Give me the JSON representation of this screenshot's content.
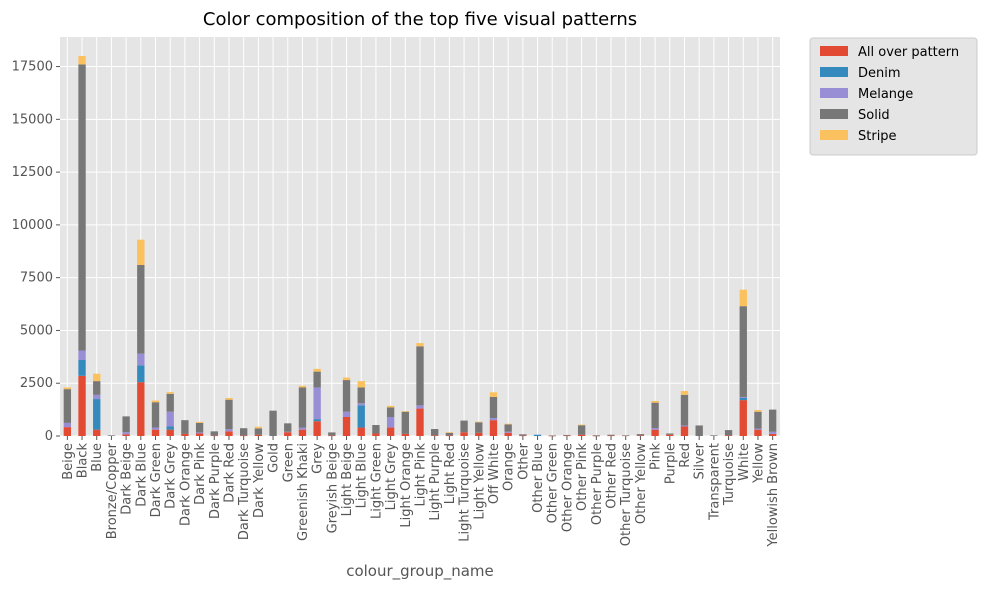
{
  "chart_data": {
    "type": "bar",
    "stacked": true,
    "title": "Color composition of the top five visual patterns",
    "xlabel": "colour_group_name",
    "ylabel": "",
    "ylim": [
      0,
      18900
    ],
    "yticks": [
      0,
      2500,
      5000,
      7500,
      10000,
      12500,
      15000,
      17500
    ],
    "grid": true,
    "legend_position": "outside-top-right",
    "categories": [
      "Beige",
      "Black",
      "Blue",
      "Bronze/Copper",
      "Dark Beige",
      "Dark Blue",
      "Dark Green",
      "Dark Grey",
      "Dark Orange",
      "Dark Pink",
      "Dark Purple",
      "Dark Red",
      "Dark Turquoise",
      "Dark Yellow",
      "Gold",
      "Green",
      "Greenish Khaki",
      "Grey",
      "Greyish Beige",
      "Light Beige",
      "Light Blue",
      "Light Green",
      "Light Grey",
      "Light Orange",
      "Light Pink",
      "Light Purple",
      "Light Red",
      "Light Turquoise",
      "Light Yellow",
      "Off White",
      "Orange",
      "Other",
      "Other Blue",
      "Other Green",
      "Other Orange",
      "Other Pink",
      "Other Purple",
      "Other Red",
      "Other Turquoise",
      "Other Yellow",
      "Pink",
      "Purple",
      "Red",
      "Silver",
      "Transparent",
      "Turquoise",
      "White",
      "Yellow",
      "Yellowish Brown"
    ],
    "series": [
      {
        "name": "All over pattern",
        "color": "#E24A33",
        "values": [
          420,
          2850,
          300,
          0,
          80,
          2550,
          300,
          300,
          100,
          120,
          20,
          220,
          20,
          60,
          0,
          180,
          300,
          700,
          20,
          900,
          400,
          120,
          400,
          100,
          1300,
          30,
          20,
          180,
          150,
          750,
          150,
          20,
          0,
          10,
          20,
          60,
          10,
          20,
          20,
          30,
          300,
          60,
          450,
          0,
          0,
          30,
          1700,
          300,
          100
        ]
      },
      {
        "name": "Denim",
        "color": "#348ABD",
        "values": [
          0,
          750,
          1450,
          0,
          0,
          800,
          0,
          150,
          0,
          0,
          0,
          0,
          0,
          0,
          0,
          0,
          0,
          100,
          0,
          0,
          1050,
          0,
          0,
          0,
          0,
          0,
          0,
          0,
          0,
          0,
          0,
          0,
          60,
          0,
          0,
          0,
          0,
          0,
          0,
          0,
          0,
          0,
          0,
          0,
          0,
          0,
          100,
          0,
          0
        ]
      },
      {
        "name": "Melange",
        "color": "#988ED5",
        "values": [
          200,
          450,
          200,
          0,
          100,
          550,
          100,
          700,
          0,
          50,
          0,
          100,
          0,
          0,
          0,
          20,
          100,
          1500,
          0,
          250,
          100,
          0,
          500,
          0,
          150,
          0,
          0,
          0,
          0,
          100,
          50,
          0,
          0,
          0,
          0,
          0,
          0,
          0,
          0,
          0,
          80,
          0,
          50,
          0,
          0,
          0,
          50,
          50,
          100
        ]
      },
      {
        "name": "Solid",
        "color": "#777777",
        "values": [
          1600,
          13550,
          650,
          30,
          750,
          4200,
          1200,
          850,
          650,
          450,
          200,
          1400,
          350,
          300,
          1200,
          400,
          1900,
          750,
          150,
          1500,
          750,
          400,
          450,
          1050,
          2800,
          300,
          130,
          550,
          500,
          1000,
          350,
          60,
          0,
          20,
          30,
          450,
          30,
          40,
          10,
          60,
          1200,
          60,
          1450,
          500,
          30,
          250,
          4300,
          800,
          1050
        ]
      },
      {
        "name": "Stripe",
        "color": "#FBC15E",
        "values": [
          80,
          400,
          350,
          0,
          0,
          1200,
          80,
          80,
          0,
          50,
          0,
          80,
          0,
          80,
          0,
          0,
          80,
          130,
          0,
          120,
          300,
          0,
          80,
          30,
          150,
          0,
          30,
          0,
          30,
          220,
          30,
          0,
          0,
          0,
          0,
          30,
          0,
          0,
          0,
          0,
          80,
          0,
          180,
          0,
          0,
          0,
          780,
          80,
          0
        ]
      }
    ]
  }
}
